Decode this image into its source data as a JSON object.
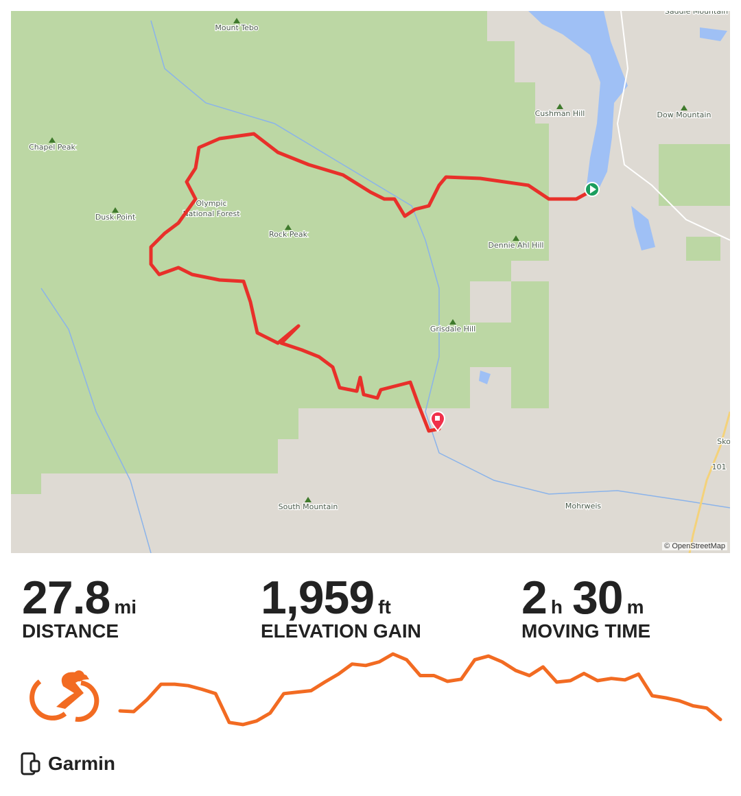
{
  "map": {
    "labels": [
      "Mount Tebo",
      "Saddle Mountain",
      "Cushman Hill",
      "Dow Mountain",
      "Chapel Peak",
      "Dusk Point",
      "Olympic National Forest",
      "Rock Peak",
      "Dennie Ahl Hill",
      "Grisdale Hill",
      "South Mountain",
      "Mohrweis",
      "Sko",
      "101"
    ],
    "attribution": "© OpenStreetMap",
    "route_color": "#e8302a",
    "start_color": "#1a9e5e",
    "end_color": "#f0304a"
  },
  "stats": [
    {
      "value": "27.8",
      "unit": "mi",
      "label": "DISTANCE"
    },
    {
      "value": "1,959",
      "unit": "ft",
      "label": "ELEVATION GAIN"
    },
    {
      "hours": "2",
      "hours_unit": "h",
      "minutes": "30",
      "minutes_unit": "m",
      "label": "MOVING TIME"
    }
  ],
  "activity": {
    "type_icon": "cycling-icon",
    "accent": "#f26b22"
  },
  "elevation_profile": [
    0.21,
    0.2,
    0.37,
    0.58,
    0.58,
    0.56,
    0.51,
    0.45,
    0.05,
    0.02,
    0.07,
    0.18,
    0.45,
    0.47,
    0.49,
    0.61,
    0.72,
    0.86,
    0.84,
    0.89,
    1.0,
    0.92,
    0.7,
    0.7,
    0.62,
    0.65,
    0.92,
    0.97,
    0.89,
    0.77,
    0.7,
    0.82,
    0.61,
    0.63,
    0.73,
    0.63,
    0.66,
    0.64,
    0.72,
    0.42,
    0.39,
    0.35,
    0.28,
    0.25,
    0.09
  ],
  "device": {
    "icon": "device-sync-icon",
    "name": "Garmin"
  }
}
